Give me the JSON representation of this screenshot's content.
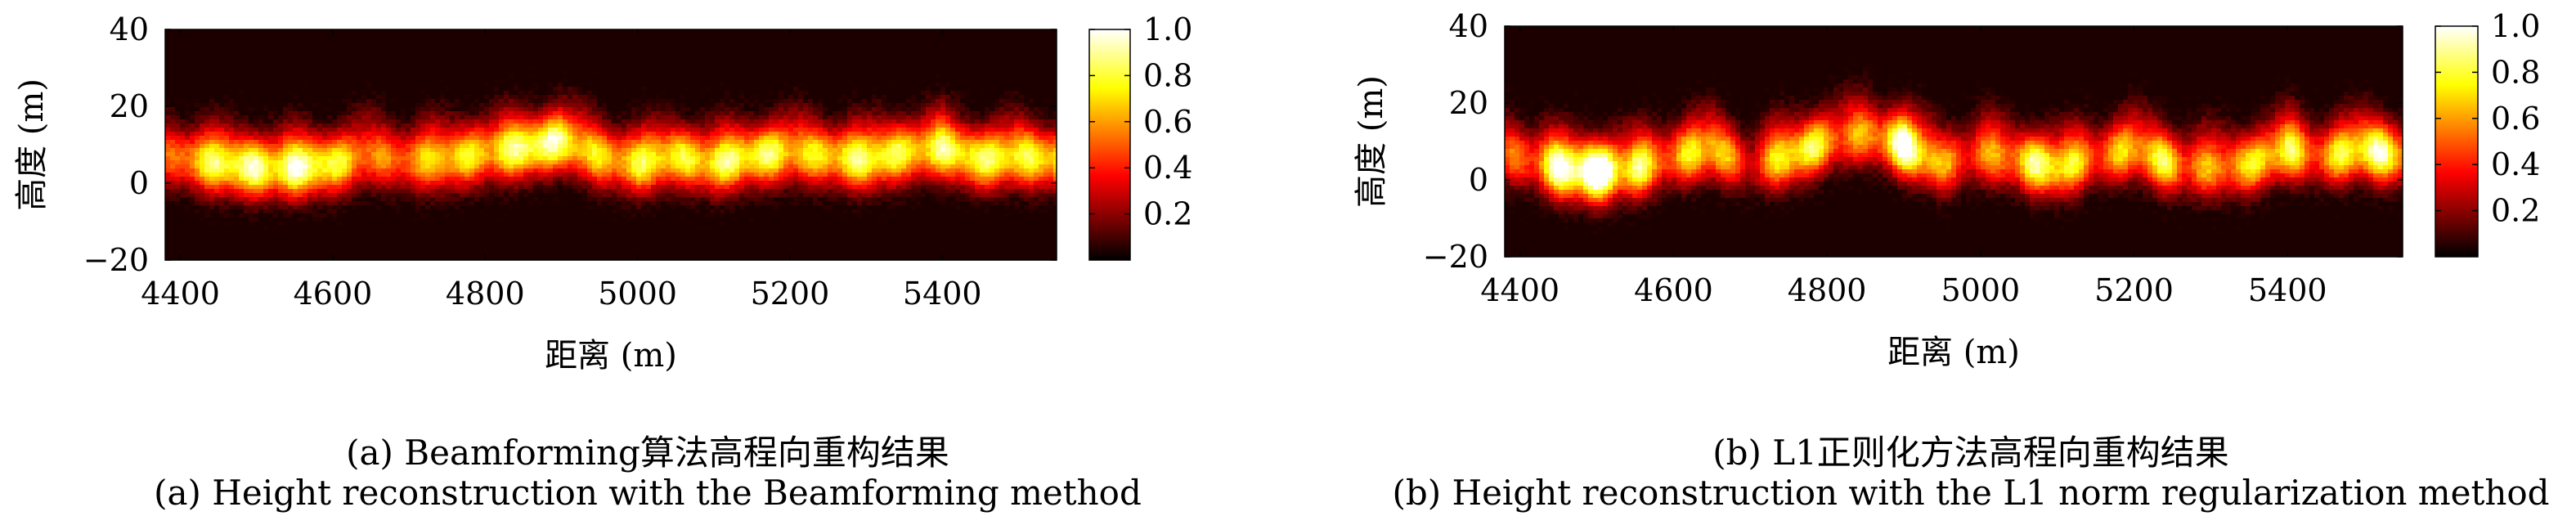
{
  "chart_data": [
    {
      "type": "heatmap",
      "panel": "a",
      "xlabel": "距离 (m)",
      "ylabel": "高度 (m)",
      "xlim": [
        4380,
        5550
      ],
      "ylim": [
        -20,
        40
      ],
      "xticks": [
        4400,
        4600,
        4800,
        5000,
        5200,
        5400
      ],
      "yticks": [
        -20,
        0,
        20,
        40
      ],
      "ytick_labels": [
        "−20",
        "0",
        "20",
        "40"
      ],
      "colorbar": {
        "range": [
          0,
          1
        ],
        "ticks": [
          "0.2",
          "0.4",
          "0.6",
          "0.8",
          "1.0"
        ],
        "colormap": "hot"
      },
      "band": {
        "x": [
          4380,
          4450,
          4500,
          4550,
          4600,
          4650,
          4700,
          4750,
          4800,
          4850,
          4900,
          4950,
          5000,
          5050,
          5100,
          5150,
          5200,
          5250,
          5300,
          5350,
          5400,
          5450,
          5500,
          5550
        ],
        "center": [
          7,
          5,
          4,
          4,
          5,
          7,
          6,
          6,
          8,
          9,
          11,
          7,
          5,
          7,
          5,
          7,
          8,
          7,
          6,
          8,
          9,
          6,
          7,
          6
        ],
        "intensity": [
          0.5,
          0.75,
          0.95,
          0.92,
          0.7,
          0.6,
          0.55,
          0.65,
          0.8,
          0.85,
          0.8,
          0.75,
          0.7,
          0.7,
          0.9,
          0.75,
          0.7,
          0.8,
          0.75,
          0.75,
          0.9,
          0.7,
          0.8,
          0.85
        ]
      }
    },
    {
      "type": "heatmap",
      "panel": "b",
      "xlabel": "距离 (m)",
      "ylabel": "高度 (m)",
      "xlim": [
        4380,
        5550
      ],
      "ylim": [
        -20,
        40
      ],
      "xticks": [
        4400,
        4600,
        4800,
        5000,
        5200,
        5400
      ],
      "yticks": [
        -20,
        0,
        20,
        40
      ],
      "ytick_labels": [
        "−20",
        "0",
        "20",
        "40"
      ],
      "colorbar": {
        "range": [
          0,
          1
        ],
        "ticks": [
          "0.2",
          "0.4",
          "0.6",
          "0.8",
          "1.0"
        ],
        "colormap": "hot"
      },
      "band": {
        "x": [
          4380,
          4450,
          4500,
          4550,
          4600,
          4650,
          4700,
          4750,
          4800,
          4850,
          4900,
          4950,
          5000,
          5050,
          5100,
          5150,
          5200,
          5250,
          5300,
          5350,
          5400,
          5450,
          5500,
          5550
        ],
        "center": [
          7,
          3,
          2,
          3,
          6,
          8,
          4,
          6,
          10,
          12,
          9,
          4,
          7,
          5,
          3,
          6,
          8,
          4,
          3,
          4,
          8,
          6,
          8,
          6
        ],
        "intensity": [
          0.45,
          0.9,
          1.0,
          0.95,
          0.5,
          0.7,
          0.45,
          0.75,
          0.6,
          0.65,
          0.9,
          0.55,
          0.6,
          0.55,
          0.9,
          0.6,
          0.55,
          0.75,
          0.6,
          0.55,
          0.85,
          0.6,
          0.75,
          0.85
        ]
      }
    }
  ],
  "captions": {
    "a_cn": "(a) Beamforming算法高程向重构结果",
    "a_en": "(a) Height reconstruction with the Beamforming method",
    "b_cn": "(b) L1正则化方法高程向重构结果",
    "b_en": "(b) Height reconstruction with the L1 norm regularization method"
  },
  "colors": {
    "axis": "#000000",
    "background": "#ffffff"
  }
}
